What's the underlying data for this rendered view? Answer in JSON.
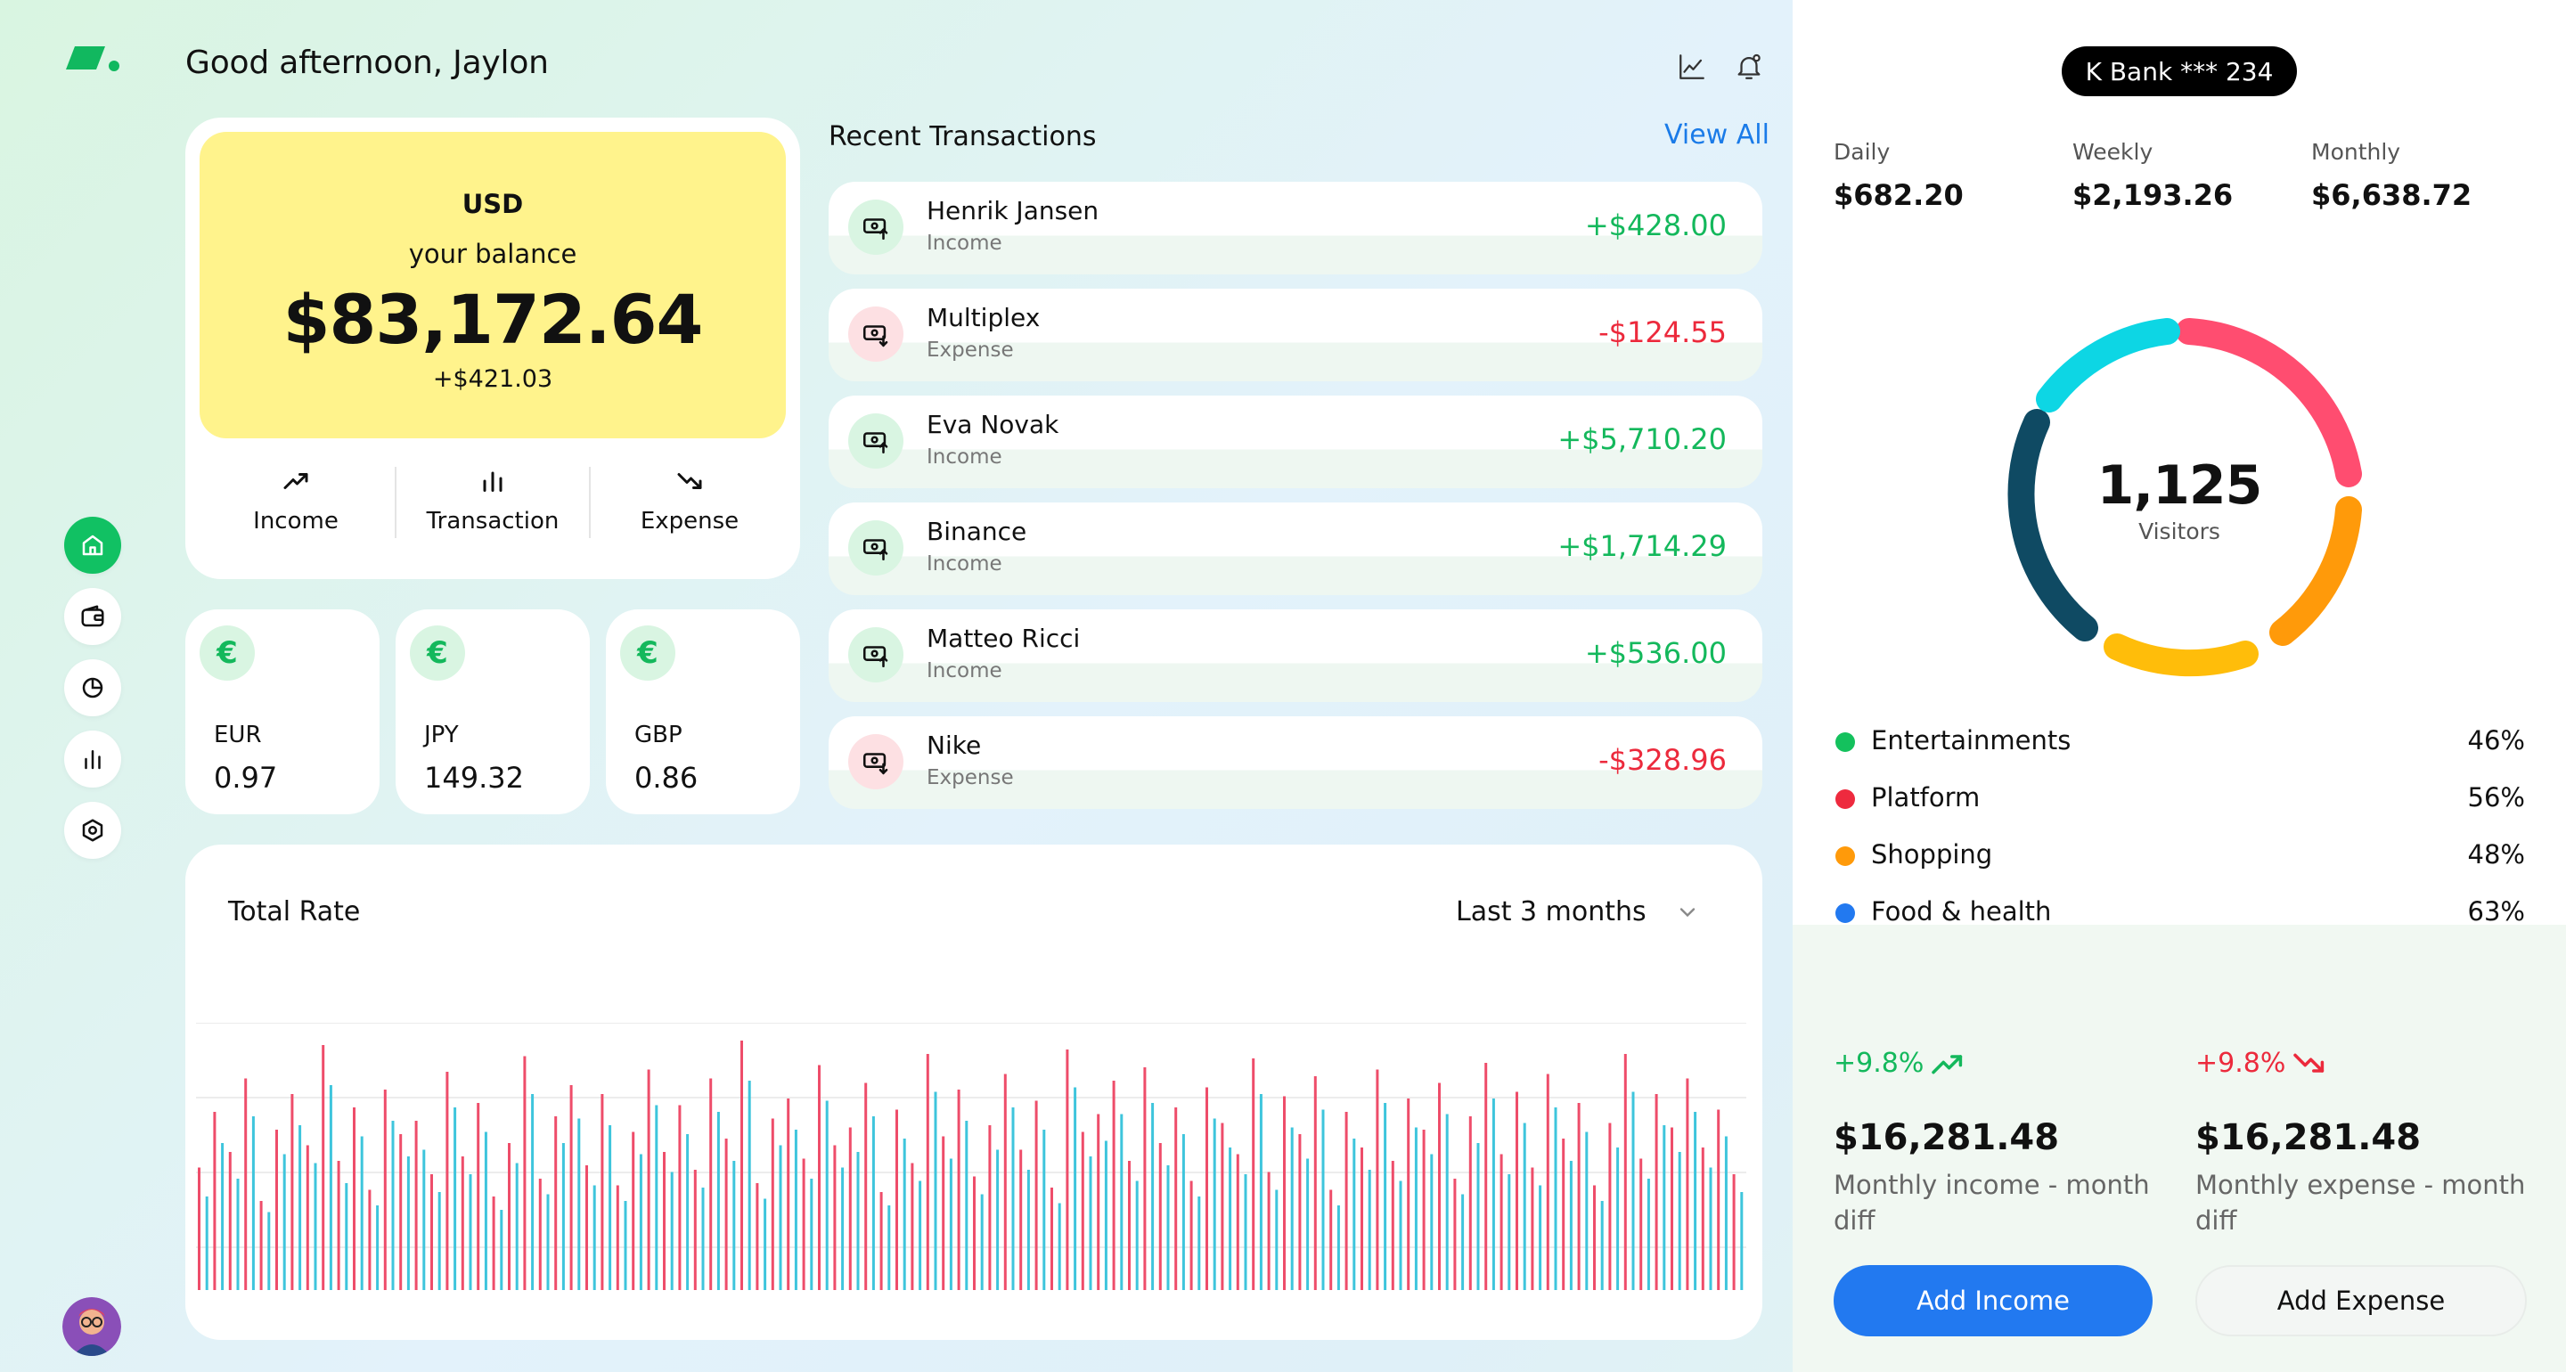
{
  "header": {
    "greeting": "Good afternoon, Jaylon",
    "icons": [
      "chart-line-icon",
      "bell-icon"
    ]
  },
  "sidebar": {
    "items": [
      {
        "name": "home",
        "icon": "home-icon",
        "active": true
      },
      {
        "name": "wallet",
        "icon": "wallet-icon",
        "active": false
      },
      {
        "name": "pie",
        "icon": "pie-chart-icon",
        "active": false
      },
      {
        "name": "stats",
        "icon": "bar-chart-icon",
        "active": false
      },
      {
        "name": "settings",
        "icon": "settings-icon",
        "active": false
      }
    ]
  },
  "balance": {
    "currency": "USD",
    "label": "your balance",
    "amount": "$83,172.64",
    "change": "+$421.03",
    "actions": [
      {
        "label": "Income",
        "icon": "trend-up-icon"
      },
      {
        "label": "Transaction",
        "icon": "bar-chart-icon"
      },
      {
        "label": "Expense",
        "icon": "trend-down-icon"
      }
    ]
  },
  "currencies": [
    {
      "symbol": "€",
      "code": "EUR",
      "rate": "0.97"
    },
    {
      "symbol": "€",
      "code": "JPY",
      "rate": "149.32"
    },
    {
      "symbol": "€",
      "code": "GBP",
      "rate": "0.86"
    }
  ],
  "transactions": {
    "title": "Recent Transactions",
    "view_all": "View All",
    "items": [
      {
        "name": "Henrik Jansen",
        "type": "Income",
        "amount": "+$428.00"
      },
      {
        "name": "Multiplex",
        "type": "Expense",
        "amount": "-$124.55"
      },
      {
        "name": "Eva Novak",
        "type": "Income",
        "amount": "+$5,710.20"
      },
      {
        "name": "Binance",
        "type": "Income",
        "amount": "+$1,714.29"
      },
      {
        "name": "Matteo Ricci",
        "type": "Income",
        "amount": "+$536.00"
      },
      {
        "name": "Nike",
        "type": "Expense",
        "amount": "-$328.96"
      }
    ]
  },
  "total_rate": {
    "title": "Total Rate",
    "period": "Last 3 months",
    "colors": {
      "series_a": "#ee4d6a",
      "series_b": "#3ec5dc",
      "grid": "#e6e6e6"
    }
  },
  "account": {
    "bank": "K Bank *** 234",
    "periods": [
      {
        "label": "Daily",
        "value": "$682.20"
      },
      {
        "label": "Weekly",
        "value": "$2,193.26"
      },
      {
        "label": "Monthly",
        "value": "$6,638.72"
      }
    ]
  },
  "visitors": {
    "count": "1,125",
    "label": "Visitors",
    "segments": [
      {
        "color": "#ff4d70"
      },
      {
        "color": "#ff9a0a"
      },
      {
        "color": "#ffbd0a"
      },
      {
        "color": "#0f4a63"
      },
      {
        "color": "#0dd6e4"
      }
    ],
    "legend": [
      {
        "name": "Entertainments",
        "pct": "46%",
        "color": "#14c15d"
      },
      {
        "name": "Platform",
        "pct": "56%",
        "color": "#ee2a3e"
      },
      {
        "name": "Shopping",
        "pct": "48%",
        "color": "#ff9a0a"
      },
      {
        "name": "Food & health",
        "pct": "63%",
        "color": "#2279f0"
      }
    ]
  },
  "monthly": {
    "income": {
      "pct": "+9.8%",
      "amount": "$16,281.48",
      "desc": "Monthly income - month diff"
    },
    "expense": {
      "pct": "+9.8%",
      "amount": "$16,281.48",
      "desc": "Monthly expense - month diff"
    }
  },
  "buttons": {
    "add_income": "Add Income",
    "add_expense": "Add Expense"
  },
  "chart_data": {
    "type": "bar",
    "series": [
      {
        "values": [
          55,
          80,
          62,
          95,
          40,
          72,
          88,
          65,
          110,
          58,
          82,
          45,
          90,
          70,
          76,
          52,
          98,
          60,
          84,
          42,
          66,
          105,
          50,
          78,
          92,
          56,
          88,
          47,
          71,
          99,
          62,
          83,
          54,
          95,
          68,
          112,
          48,
          77,
          86,
          59,
          101,
          65,
          73,
          93,
          44,
          81,
          57,
          106,
          69,
          90,
          51,
          74,
          97,
          63,
          85,
          46,
          108,
          71,
          79,
          94,
          58,
          100,
          66,
          82,
          49,
          91,
          75,
          61,
          104,
          53,
          87,
          70,
          96,
          45,
          80,
          64,
          99,
          58,
          86,
          72,
          93,
          50,
          78,
          102,
          61,
          89,
          55,
          97,
          68,
          84,
          47,
          75,
          106,
          59,
          88,
          73,
          95,
          64,
          81,
          52
        ]
      },
      {
        "values": [
          42,
          66,
          50,
          78,
          35,
          61,
          74,
          57,
          92,
          48,
          69,
          38,
          76,
          60,
          63,
          44,
          82,
          52,
          71,
          36,
          57,
          88,
          43,
          66,
          77,
          47,
          74,
          40,
          61,
          83,
          53,
          70,
          46,
          80,
          58,
          94,
          41,
          65,
          72,
          50,
          85,
          55,
          62,
          78,
          38,
          68,
          49,
          89,
          59,
          76,
          43,
          63,
          82,
          54,
          72,
          39,
          91,
          60,
          67,
          79,
          49,
          84,
          56,
          70,
          42,
          77,
          64,
          52,
          88,
          45,
          73,
          59,
          81,
          38,
          68,
          54,
          84,
          49,
          73,
          61,
          79,
          43,
          66,
          86,
          52,
          75,
          47,
          82,
          58,
          71,
          40,
          64,
          89,
          50,
          74,
          62,
          80,
          55,
          69,
          44
        ]
      }
    ]
  }
}
